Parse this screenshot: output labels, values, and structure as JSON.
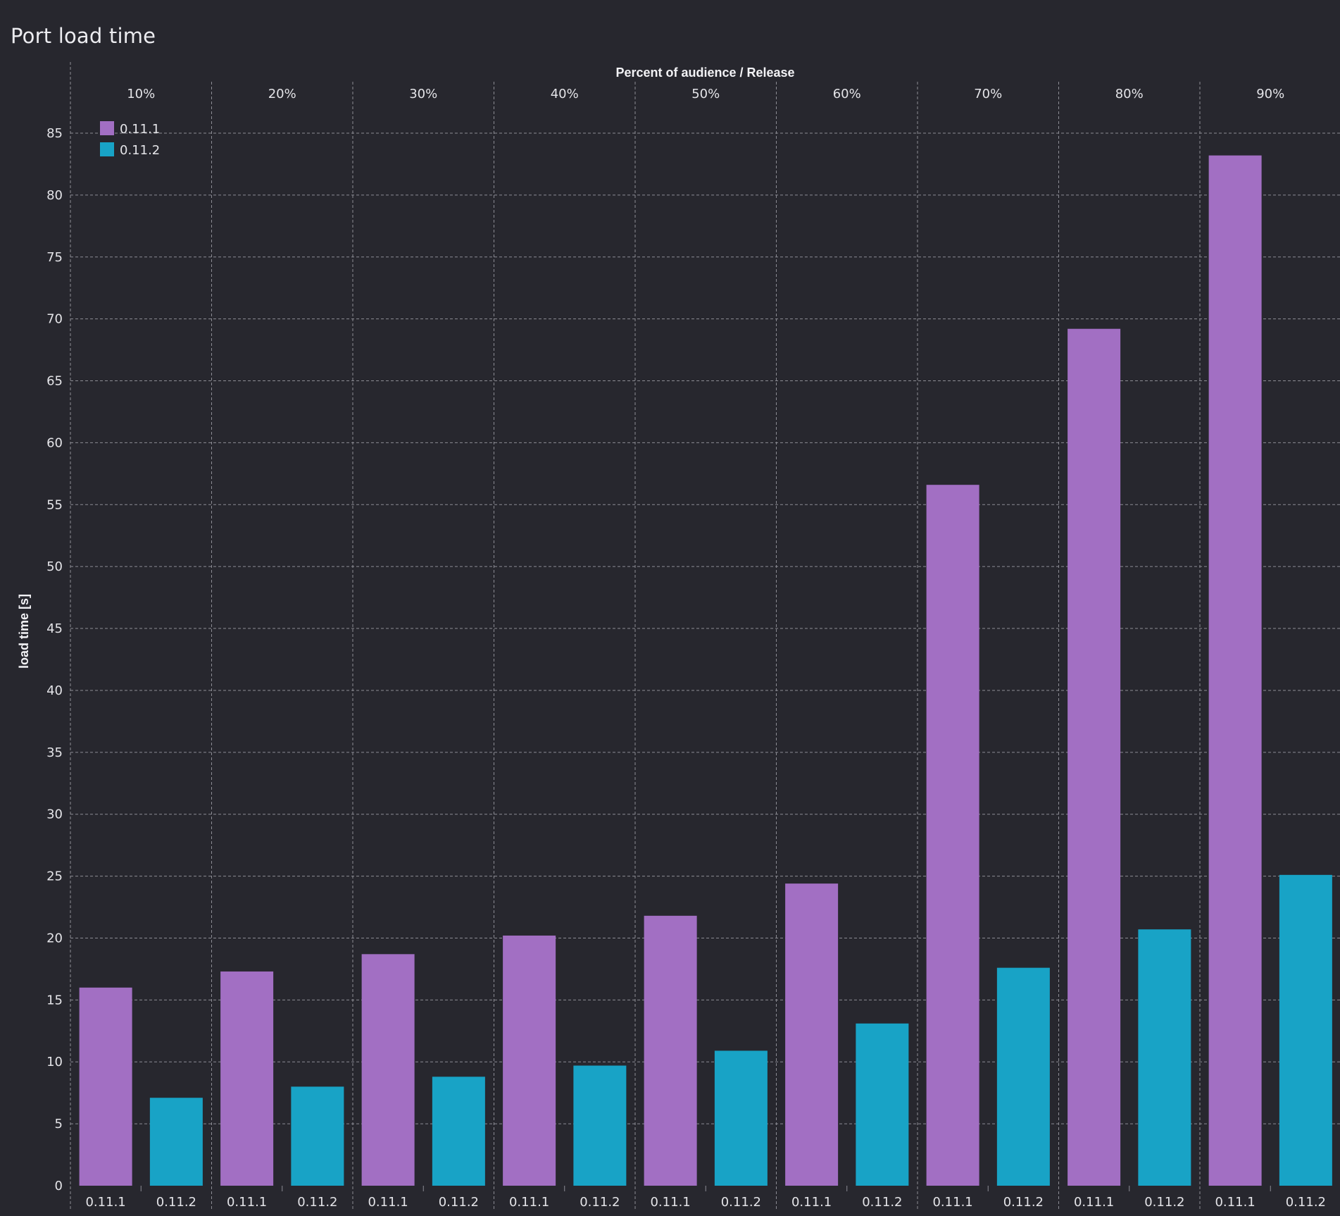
{
  "page": {
    "title": "Port load time"
  },
  "chart_data": {
    "type": "bar",
    "title": "Port load time",
    "top_axis_title": "Percent of audience / Release",
    "ylabel": "load time [s]",
    "ylim": [
      0,
      88
    ],
    "yticks": [
      0,
      5,
      10,
      15,
      20,
      25,
      30,
      35,
      40,
      45,
      50,
      55,
      60,
      65,
      70,
      75,
      80,
      85
    ],
    "grid": true,
    "legend_position": "top-left",
    "categories": [
      "10%",
      "20%",
      "30%",
      "40%",
      "50%",
      "60%",
      "70%",
      "80%",
      "90%"
    ],
    "series": [
      {
        "name": "0.11.1",
        "color": "#a26fc3",
        "values": [
          16.0,
          17.3,
          18.7,
          20.2,
          21.8,
          24.4,
          56.6,
          69.2,
          83.2
        ]
      },
      {
        "name": "0.11.2",
        "color": "#18a3c6",
        "values": [
          7.1,
          8.0,
          8.8,
          9.7,
          10.9,
          13.1,
          17.6,
          20.7,
          25.1
        ]
      }
    ]
  },
  "style": {
    "background": "#27272e",
    "grid_color": "#8c8c94",
    "text_color": "#e4e4e8"
  }
}
